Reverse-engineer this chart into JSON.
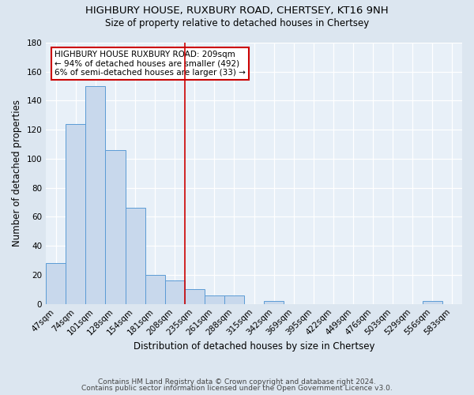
{
  "title1": "HIGHBURY HOUSE, RUXBURY ROAD, CHERTSEY, KT16 9NH",
  "title2": "Size of property relative to detached houses in Chertsey",
  "xlabel": "Distribution of detached houses by size in Chertsey",
  "ylabel": "Number of detached properties",
  "footnote1": "Contains HM Land Registry data © Crown copyright and database right 2024.",
  "footnote2": "Contains public sector information licensed under the Open Government Licence v3.0.",
  "bins": [
    "47sqm",
    "74sqm",
    "101sqm",
    "128sqm",
    "154sqm",
    "181sqm",
    "208sqm",
    "235sqm",
    "261sqm",
    "288sqm",
    "315sqm",
    "342sqm",
    "369sqm",
    "395sqm",
    "422sqm",
    "449sqm",
    "476sqm",
    "503sqm",
    "529sqm",
    "556sqm",
    "583sqm"
  ],
  "values": [
    28,
    124,
    150,
    106,
    66,
    20,
    16,
    10,
    6,
    6,
    0,
    2,
    0,
    0,
    0,
    0,
    0,
    0,
    0,
    2,
    0
  ],
  "bar_color": "#c8d8ec",
  "bar_edge_color": "#5b9bd5",
  "vline_x": 6.5,
  "vline_color": "#cc0000",
  "annotation_text": "HIGHBURY HOUSE RUXBURY ROAD: 209sqm\n← 94% of detached houses are smaller (492)\n6% of semi-detached houses are larger (33) →",
  "annotation_box_color": "#ffffff",
  "annotation_box_edge": "#cc0000",
  "ylim": [
    0,
    180
  ],
  "yticks": [
    0,
    20,
    40,
    60,
    80,
    100,
    120,
    140,
    160,
    180
  ],
  "bg_color": "#dce6f0",
  "plot_bg_color": "#e8f0f8",
  "grid_color": "#ffffff",
  "title_fontsize": 9.5,
  "subtitle_fontsize": 8.5,
  "label_fontsize": 8.5,
  "tick_fontsize": 7.5,
  "footnote_fontsize": 6.5,
  "ann_fontsize": 7.5
}
